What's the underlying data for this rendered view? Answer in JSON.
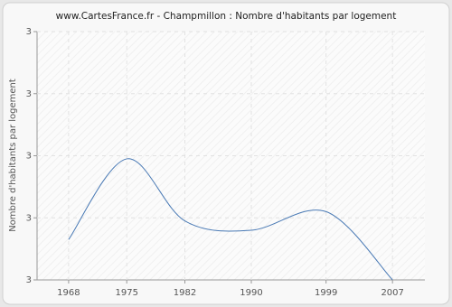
{
  "chart_data": {
    "type": "line",
    "title": "www.CartesFrance.fr - Champmillon : Nombre d'habitants par logement",
    "y_label": "Nombre d'habitants par logement",
    "x": [
      1968,
      1975,
      1982,
      1990,
      1999,
      2007
    ],
    "series": [
      {
        "name": "Nombre d'habitants par logement",
        "color": "#4a7ab5",
        "values": [
          2.73,
          2.99,
          2.79,
          2.76,
          2.82,
          2.6
        ]
      }
    ],
    "xlim": [
      1964.2,
      2010.9
    ],
    "xticks": [
      1968,
      1975,
      1982,
      1990,
      1999,
      2007
    ],
    "ylim": [
      2.6,
      3.4
    ],
    "yticks": [
      {
        "value": 2.6,
        "label": "3"
      },
      {
        "value": 2.8,
        "label": "3"
      },
      3,
      {
        "value": 3.2,
        "label": "3"
      },
      {
        "value": 3.4,
        "label": "3"
      }
    ],
    "grid": true
  }
}
